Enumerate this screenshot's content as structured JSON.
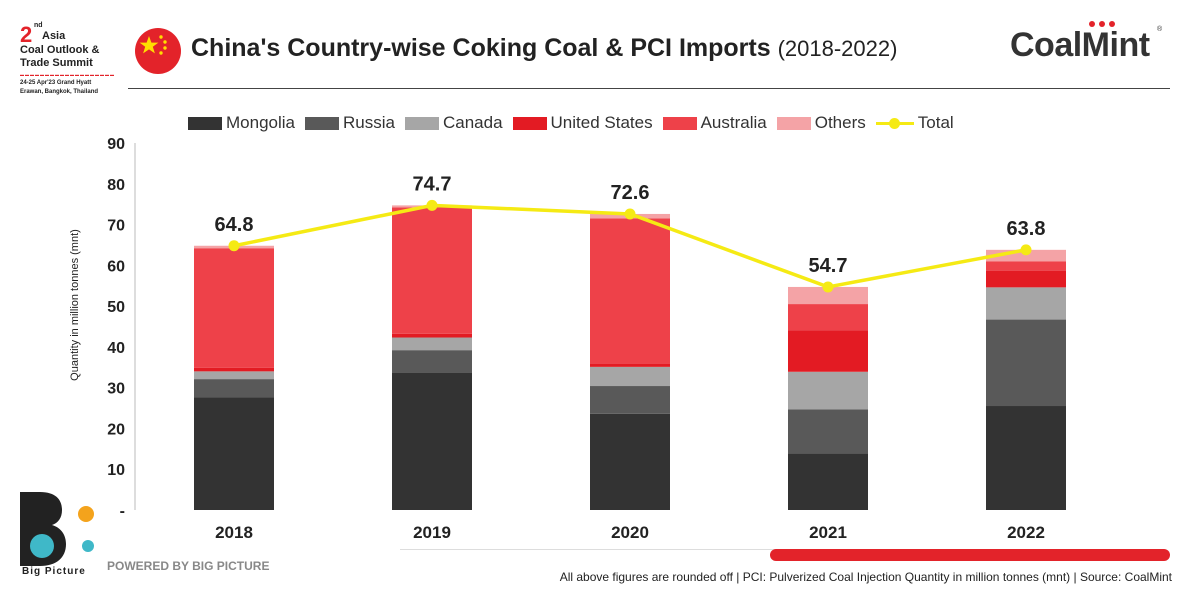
{
  "header": {
    "event": {
      "number": "2",
      "ordinal": "nd",
      "region": "Asia",
      "line1": "Coal Outlook &",
      "line2": "Trade Summit",
      "date_line1": "24-25 Apr'23  Grand Hyatt",
      "date_line2": "Erawan, Bangkok, Thailand"
    },
    "title_main": "China's Country-wise Coking Coal & PCI Imports",
    "title_sub": "(2018-2022)",
    "brand": "CoalMint",
    "brand_reg": "®"
  },
  "colors": {
    "mongolia": "#333333",
    "russia": "#595959",
    "canada": "#a6a6a6",
    "united_states": "#e31b23",
    "australia": "#ee4149",
    "others": "#f4a3a6",
    "total": "#f5ea14",
    "accent": "#e3232a"
  },
  "chart_data": {
    "type": "bar",
    "stacked": true,
    "categories": [
      "2018",
      "2019",
      "2020",
      "2021",
      "2022"
    ],
    "series": [
      {
        "name": "Mongolia",
        "values": [
          27.6,
          33.6,
          23.6,
          13.9,
          25.5
        ]
      },
      {
        "name": "Russia",
        "values": [
          4.5,
          5.6,
          6.8,
          10.8,
          21.2
        ]
      },
      {
        "name": "Canada",
        "values": [
          1.9,
          3.1,
          4.7,
          9.2,
          7.9
        ]
      },
      {
        "name": "United States",
        "values": [
          0.9,
          0.9,
          0.8,
          10.2,
          4.1
        ]
      },
      {
        "name": "Australia",
        "values": [
          29.3,
          31.0,
          35.6,
          6.4,
          2.3
        ]
      },
      {
        "name": "Others",
        "values": [
          0.6,
          0.5,
          1.1,
          4.2,
          2.8
        ]
      }
    ],
    "line_series": {
      "name": "Total",
      "values": [
        64.8,
        74.7,
        72.6,
        54.7,
        63.8
      ]
    },
    "ylabel": "Quantity in million tonnes (mnt)",
    "xlabel": "",
    "ylim": [
      0,
      90
    ],
    "yticks": [
      "-",
      "10",
      "20",
      "30",
      "40",
      "50",
      "60",
      "70",
      "80",
      "90"
    ],
    "legend_position": "top",
    "grid": false
  },
  "footer": {
    "bp_name": "Big Picture",
    "powered": "POWERED BY BIG PICTURE",
    "note": "All above figures are rounded off | PCI: Pulverized Coal Injection Quantity in million tonnes (mnt) | Source: CoalMint"
  }
}
